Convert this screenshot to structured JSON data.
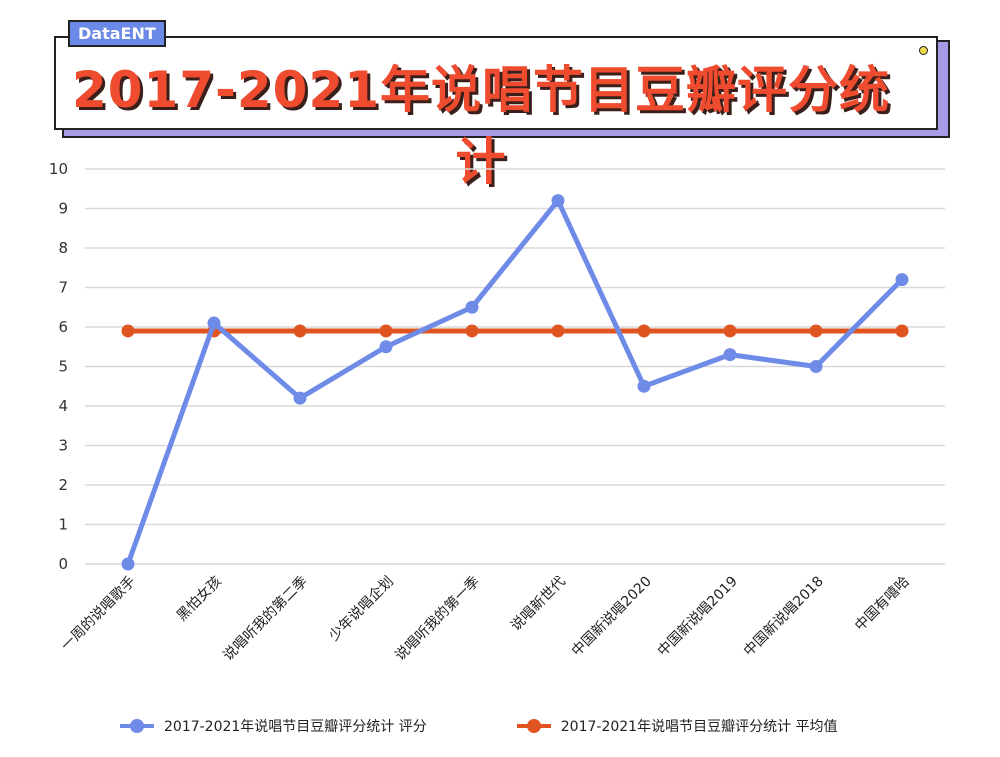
{
  "badge": "DataENT",
  "chart_data": {
    "type": "line",
    "title": "2017-2021年说唱节目豆瓣评分统计",
    "categories": [
      "一周的说唱歌手",
      "黑怕女孩",
      "说唱听我的第二季",
      "少年说唱企划",
      "说唱听我的第一季",
      "说唱新世代",
      "中国新说唱2020",
      "中国新说唱2019",
      "中国新说唱2018",
      "中国有嘻哈"
    ],
    "ylim": [
      0,
      10
    ],
    "yticks": [
      0,
      1,
      2,
      3,
      4,
      5,
      6,
      7,
      8,
      9,
      10
    ],
    "grid": true,
    "legend_placement": "bottom",
    "series": [
      {
        "name": "2017-2021年说唱节目豆瓣评分统计  评分",
        "color": "#6f8be8",
        "values": [
          0,
          6.1,
          4.2,
          5.5,
          6.5,
          9.2,
          4.5,
          5.3,
          5.0,
          7.2
        ]
      },
      {
        "name": "2017-2021年说唱节目豆瓣评分统计  平均值",
        "color": "#e0541f",
        "values": [
          5.9,
          5.9,
          5.9,
          5.9,
          5.9,
          5.9,
          5.9,
          5.9,
          5.9,
          5.9
        ]
      }
    ]
  }
}
